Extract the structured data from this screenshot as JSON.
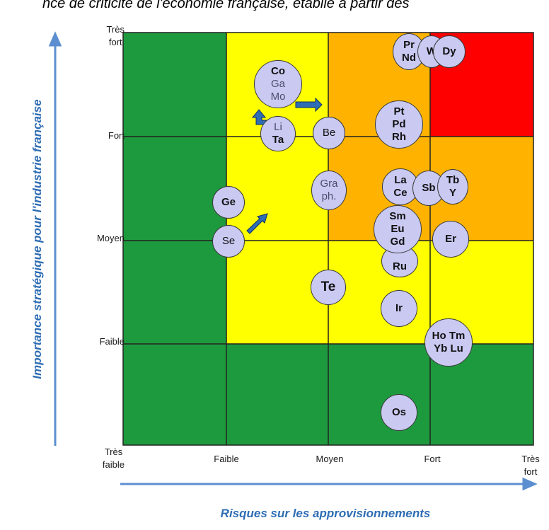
{
  "header": {
    "title_fragment": "nce de criticité de l'économie française, établie à partir des"
  },
  "y_axis": {
    "title": "Importance stratégique pour l'industrie française",
    "levels": [
      {
        "line1": "Très",
        "line2": "fort"
      },
      {
        "line1": "Fort",
        "line2": ""
      },
      {
        "line1": "Moyen",
        "line2": ""
      },
      {
        "line1": "Faible",
        "line2": ""
      },
      {
        "line1": "Très",
        "line2": "faible"
      }
    ]
  },
  "x_axis": {
    "title": "Risques sur les approvisionnements",
    "levels": [
      {
        "line1": "Faible",
        "line2": ""
      },
      {
        "line1": "Moyen",
        "line2": ""
      },
      {
        "line1": "Fort",
        "line2": ""
      },
      {
        "line1": "Très",
        "line2": "fort"
      }
    ]
  },
  "zone_colors": {
    "green": "#1e9a3e",
    "yellow": "#ffff00",
    "orange": "#ffb300",
    "red": "#ff0000"
  },
  "elements": {
    "co_ga_mo": [
      "Co",
      "Ga",
      "Mo"
    ],
    "li_ta": [
      "Li",
      "Ta"
    ],
    "be": "Be",
    "ge": "Ge",
    "se": "Se",
    "graph": [
      "Gra",
      "ph."
    ],
    "te": "Te",
    "pr_nd": [
      "Pr",
      "Nd"
    ],
    "w": "W",
    "dy": "Dy",
    "pt_pd_rh": [
      "Pt",
      "Pd",
      "Rh"
    ],
    "la_ce": [
      "La",
      "Ce"
    ],
    "sb": "Sb",
    "tb_y": [
      "Tb",
      "Y"
    ],
    "sm_eu_gd": [
      "Sm",
      "Eu",
      "Gd"
    ],
    "ru": "Ru",
    "er": "Er",
    "ir": "Ir",
    "ho_tm_yb_lu": [
      "Ho Tm",
      "Yb Lu"
    ],
    "os": "Os"
  },
  "arrow_color": "#2e6db4"
}
